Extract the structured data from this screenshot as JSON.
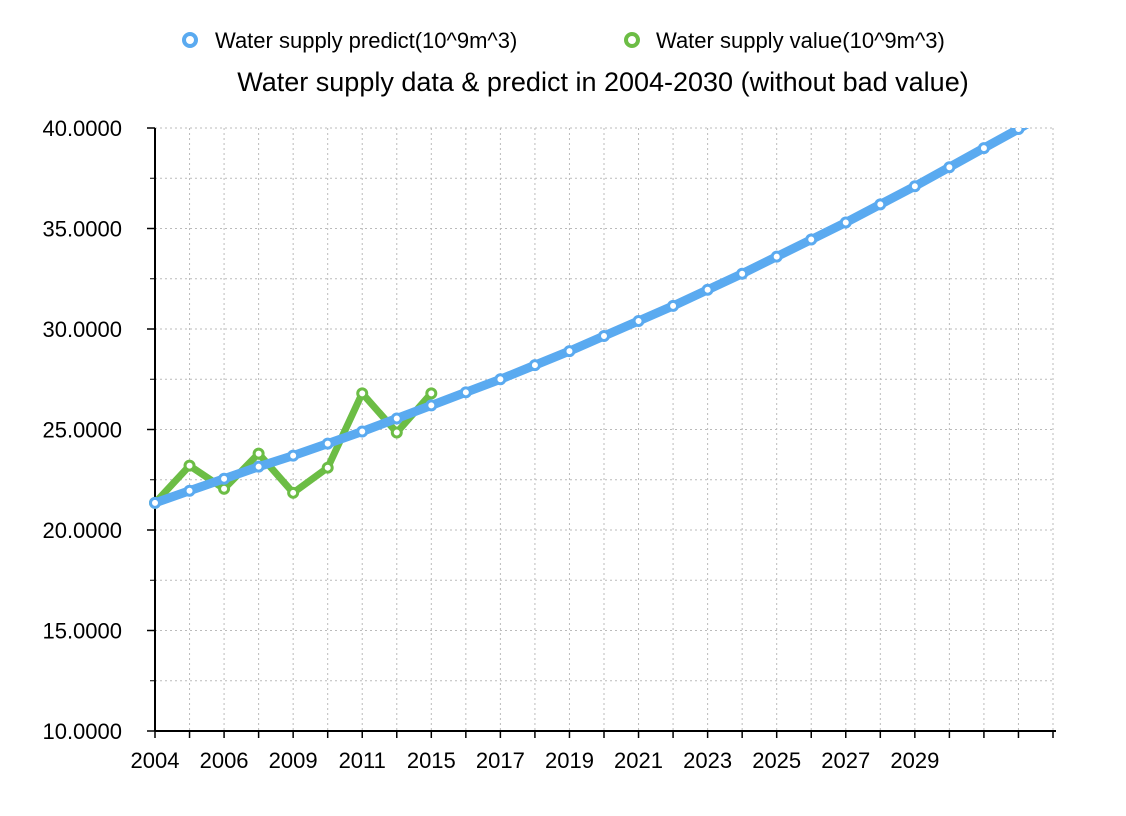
{
  "chart_data": {
    "type": "line",
    "title": "Water supply data & predict in 2004-2030 (without bad value)",
    "xlabel": "",
    "ylabel": "",
    "xlim": [
      2004,
      2030
    ],
    "ylim": [
      10,
      40
    ],
    "y_ticks": [
      "10.0000",
      "15.0000",
      "20.0000",
      "25.0000",
      "30.0000",
      "35.0000",
      "40.0000"
    ],
    "x_tick_labels": [
      "2004",
      "2006",
      "2009",
      "2011",
      "2015",
      "2017",
      "2019",
      "2021",
      "2023",
      "2025",
      "2027",
      "2029"
    ],
    "grid": true,
    "legend_position": "top",
    "series": [
      {
        "name": "Water supply predict(10^9m^3)",
        "color": "#5aaaf0",
        "x": [
          2004,
          2005,
          2006,
          2007,
          2008,
          2009,
          2010,
          2011,
          2012,
          2013,
          2014,
          2015,
          2016,
          2017,
          2018,
          2019,
          2020,
          2021,
          2022,
          2023,
          2024,
          2025,
          2026,
          2027,
          2028,
          2029,
          2030
        ],
        "values": [
          21.35,
          21.95,
          22.55,
          23.15,
          23.7,
          24.3,
          24.9,
          25.55,
          26.2,
          26.85,
          27.5,
          28.2,
          28.9,
          29.65,
          30.4,
          31.15,
          31.95,
          32.75,
          33.6,
          34.45,
          35.3,
          36.2,
          37.1,
          38.05,
          39.0,
          39.95,
          40.95
        ]
      },
      {
        "name": "Water supply value(10^9m^3)",
        "color": "#6cbd45",
        "x": [
          2004,
          2005,
          2006,
          2007,
          2008,
          2009,
          2010,
          2011,
          2012
        ],
        "values": [
          21.35,
          23.2,
          22.05,
          23.8,
          21.85,
          23.1,
          26.8,
          24.85,
          26.8
        ]
      }
    ]
  }
}
